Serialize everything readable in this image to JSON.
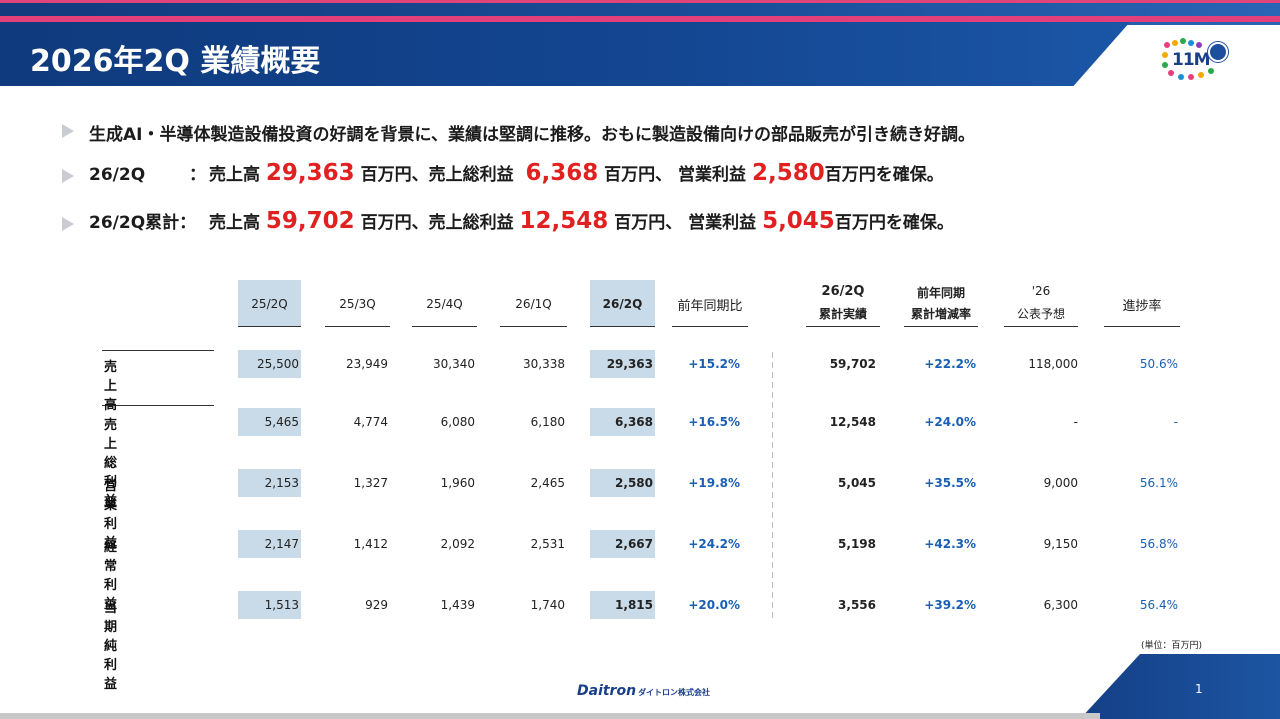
{
  "title": "2026年2Q 業績概要",
  "logo_text": "11M",
  "bullets": [
    {
      "text": "生成AI・半導体製造設備投資の好調を背景に、業績は堅調に推移。おもに製造設備向けの部品販売が引き続き好調。"
    },
    {
      "label": "26/2Q",
      "colon": "：",
      "sales_label": "売上高",
      "sales": "29,363",
      "unit1": "百万円、売上総利益",
      "gross": "6,368",
      "unit2": "百万円、 営業利益",
      "op": "2,580",
      "unit3": "百万円を確保。"
    },
    {
      "label": "26/2Q累計：",
      "sales_label": "売上高",
      "sales": "59,702",
      "unit1": "百万円、売上総利益",
      "gross": "12,548",
      "unit2": "百万円、 営業利益",
      "op": "5,045",
      "unit3": "百万円を確保。"
    }
  ],
  "table": {
    "headers": [
      "25/2Q",
      "25/3Q",
      "25/4Q",
      "26/1Q",
      "26/2Q",
      "前年同期比",
      "26/2Q\n累計実績",
      "前年同期\n累計増減率",
      "'26\n公表予想",
      "進捗率"
    ],
    "header_lines": {
      "cum_top": "26/2Q",
      "cum_bottom": "累計実績",
      "yoy_top": "前年同期",
      "yoy_bottom": "累計増減率",
      "fc_top": "'26",
      "fc_bottom": "公表予想"
    },
    "rows": [
      {
        "label": "売上高",
        "q": [
          "25,500",
          "23,949",
          "30,340",
          "30,338",
          "29,363"
        ],
        "yoy": "+15.2%",
        "cum": "59,702",
        "cum_yoy": "+22.2%",
        "forecast": "118,000",
        "progress": "50.6%"
      },
      {
        "label": "売上総利益",
        "q": [
          "5,465",
          "4,774",
          "6,080",
          "6,180",
          "6,368"
        ],
        "yoy": "+16.5%",
        "cum": "12,548",
        "cum_yoy": "+24.0%",
        "forecast": "-",
        "progress": "-"
      },
      {
        "label": "営業利益",
        "q": [
          "2,153",
          "1,327",
          "1,960",
          "2,465",
          "2,580"
        ],
        "yoy": "+19.8%",
        "cum": "5,045",
        "cum_yoy": "+35.5%",
        "forecast": "9,000",
        "progress": "56.1%"
      },
      {
        "label": "経常利益",
        "q": [
          "2,147",
          "1,412",
          "2,092",
          "2,531",
          "2,667"
        ],
        "yoy": "+24.2%",
        "cum": "5,198",
        "cum_yoy": "+42.3%",
        "forecast": "9,150",
        "progress": "56.8%"
      },
      {
        "label": "当期純利益",
        "q": [
          "1,513",
          "929",
          "1,439",
          "1,740",
          "1,815"
        ],
        "yoy": "+20.0%",
        "cum": "3,556",
        "cum_yoy": "+39.2%",
        "forecast": "6,300",
        "progress": "56.4%"
      }
    ],
    "unit_note": "(単位：百万円)"
  },
  "footer": {
    "company": "Daitron",
    "company_sub": "ダイトロン株式会社",
    "page": "1"
  },
  "colors": {
    "accent_red": "#e12020",
    "brand_blue": "#134590",
    "accent_pink": "#e3407b",
    "highlight": "#c9dbe8",
    "value_blue": "#1a5fb4"
  }
}
